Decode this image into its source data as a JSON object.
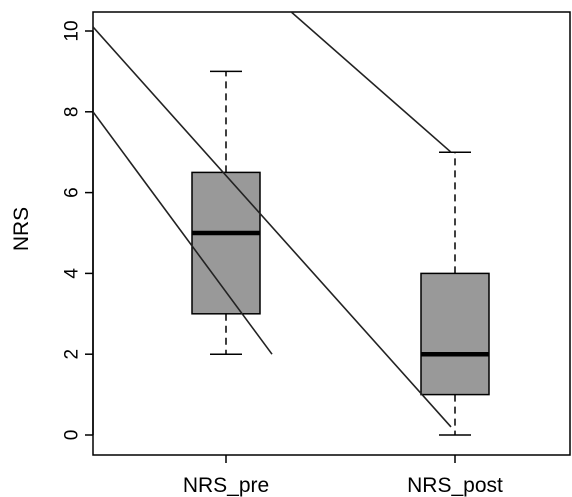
{
  "chart_data": {
    "type": "boxplot",
    "title": "",
    "xlabel": "",
    "ylabel": "NRS",
    "ylim": [
      -0.5,
      10.5
    ],
    "yticks": [
      "0",
      "2",
      "4",
      "6",
      "8",
      "10"
    ],
    "categories": [
      "NRS_pre",
      "NRS_post"
    ],
    "boxes": [
      {
        "category": "NRS_pre",
        "min": 2,
        "q1": 3,
        "median": 5,
        "q3": 6.5,
        "max": 9
      },
      {
        "category": "NRS_post",
        "min": 0,
        "q1": 1,
        "median": 2,
        "q3": 4,
        "max": 7
      }
    ],
    "line_segments": [
      {
        "x1": 0.0,
        "y1": 8.0,
        "x2": 1.0,
        "y2": 2.0
      },
      {
        "x1": 0.0,
        "y1": 10.1,
        "x2": 2.0,
        "y2": 0.2
      },
      {
        "x1": 0.95,
        "y1": 10.5,
        "x2": 1.02,
        "y2": 10.5
      },
      {
        "x1": 1.1,
        "y1": 10.5,
        "x2": 2.0,
        "y2": 7.0
      }
    ],
    "grid": false,
    "colors": {
      "box_fill": "#999999",
      "stroke": "#000000",
      "line": "#222222"
    }
  }
}
